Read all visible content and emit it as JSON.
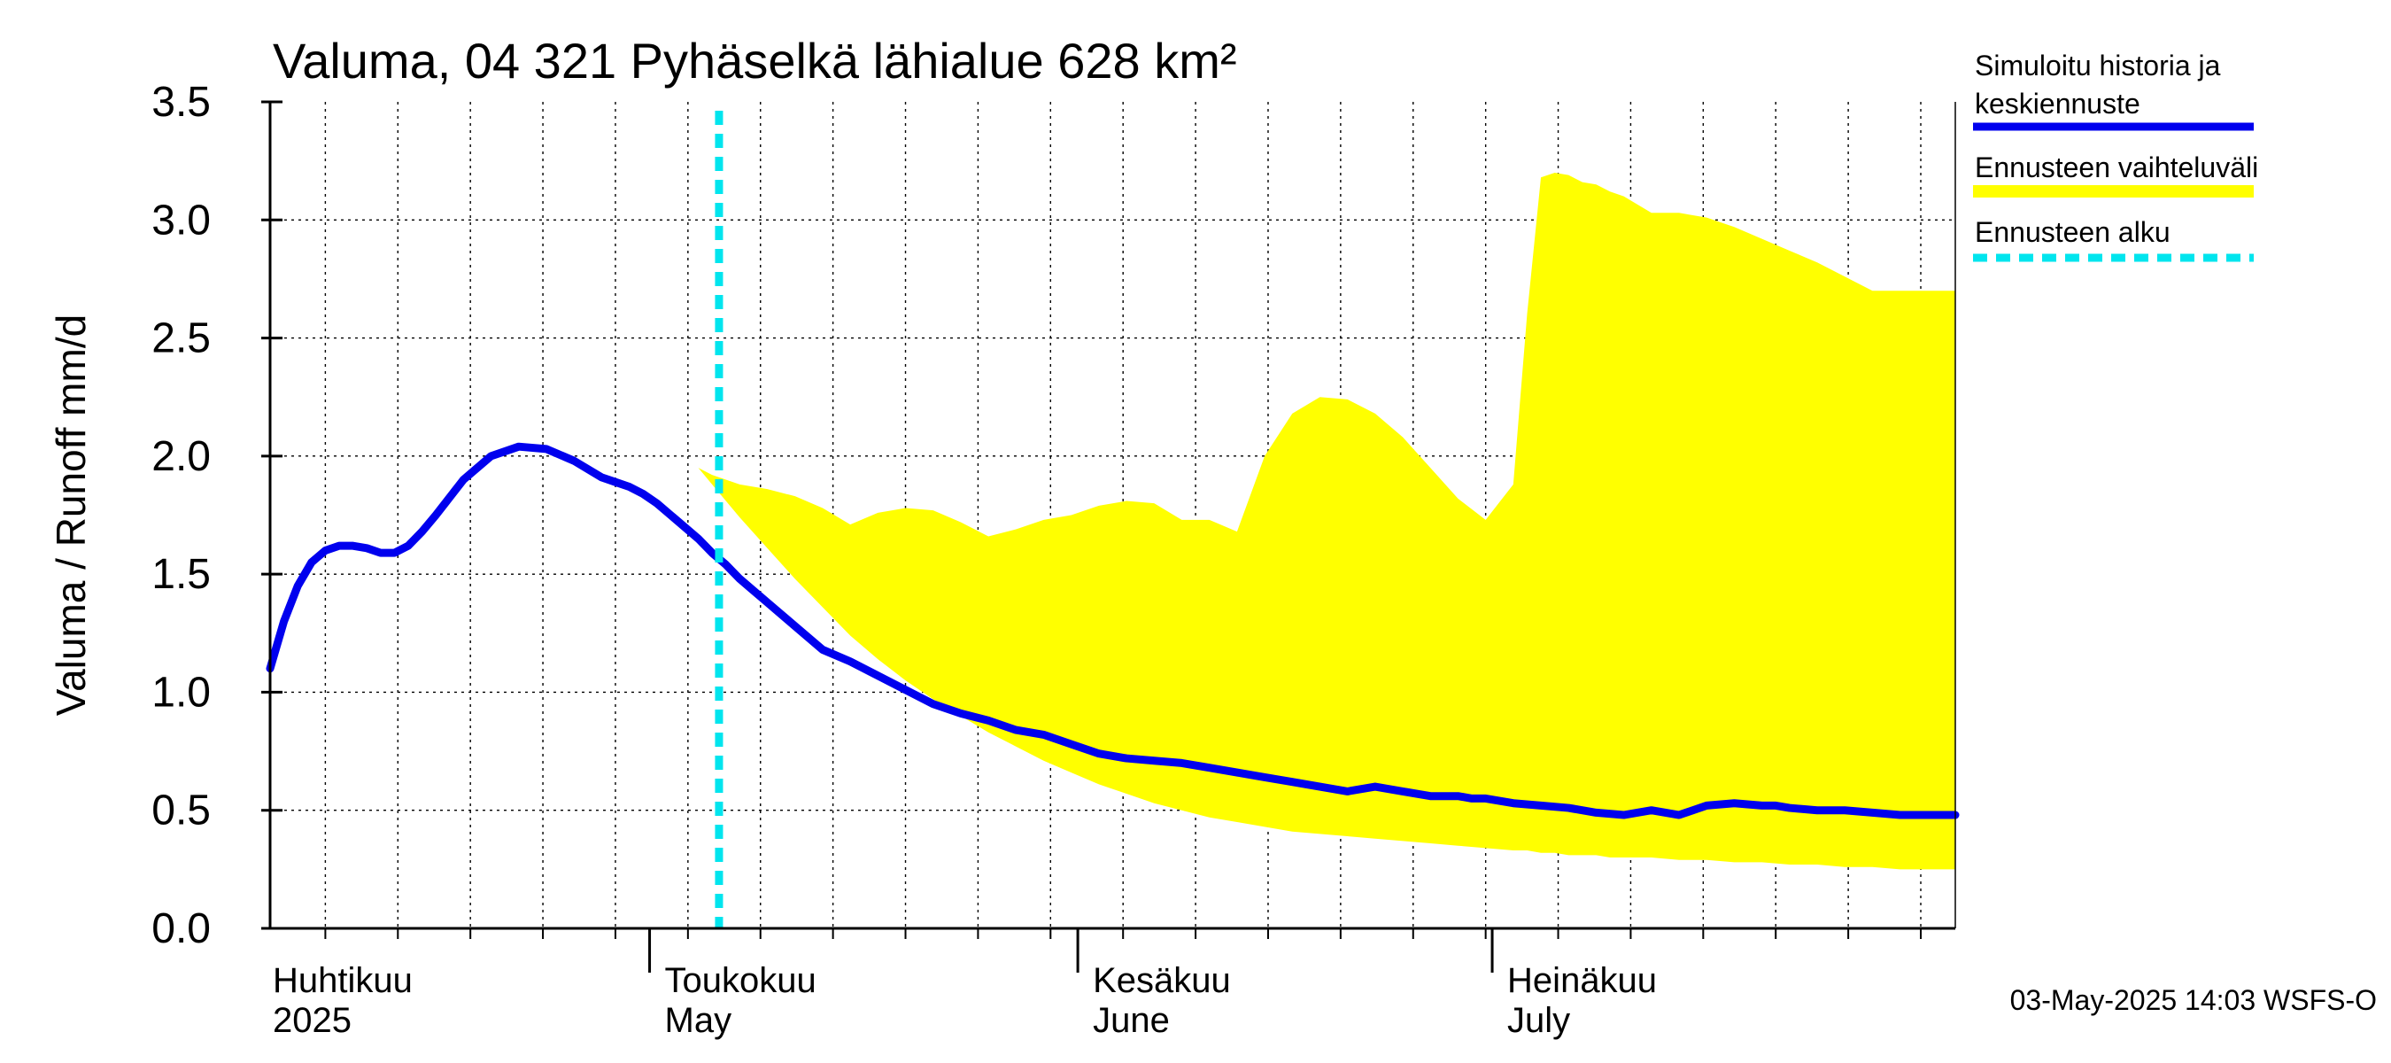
{
  "chart_data": {
    "type": "area",
    "title": "Valuma, 04 321 Pyhäselkä lähialue 628 km²",
    "ylabel": "Valuma / Runoff    mm/d",
    "ylim": [
      0,
      3.5
    ],
    "yticks": [
      "0.0",
      "0.5",
      "1.0",
      "1.5",
      "2.0",
      "2.5",
      "3.0",
      "3.5"
    ],
    "x_unit": "day of year 2025",
    "xlim": [
      90,
      212
    ],
    "forecast_start_day": 122.5,
    "month_labels": [
      {
        "fi": "Huhtikuu",
        "en": "2025",
        "day": 91
      },
      {
        "fi": "Toukokuu",
        "en": "May",
        "day": 121
      },
      {
        "fi": "Kesäkuu",
        "en": "June",
        "day": 152
      },
      {
        "fi": "Heinäkuu",
        "en": "July",
        "day": 182
      }
    ],
    "series": [
      {
        "name": "Simuloitu historia ja keskiennuste",
        "color": "#0000ee",
        "x": [
          90,
          91,
          92,
          93,
          94,
          95,
          96,
          97,
          98,
          99,
          100,
          101,
          102,
          104,
          106,
          108,
          110,
          112,
          114,
          115,
          116,
          117,
          118,
          119,
          120,
          121,
          122,
          123,
          124,
          125,
          126,
          128,
          130,
          132,
          134,
          136,
          138,
          140,
          142,
          144,
          146,
          148,
          150,
          152,
          154,
          156,
          158,
          160,
          162,
          164,
          166,
          168,
          170,
          172,
          174,
          176,
          177,
          178,
          179,
          180,
          182,
          184,
          186,
          188,
          190,
          192,
          194,
          196,
          198,
          199,
          200,
          202,
          204,
          206,
          208,
          210,
          212
        ],
        "values": [
          1.1,
          1.3,
          1.45,
          1.55,
          1.6,
          1.62,
          1.62,
          1.61,
          1.59,
          1.59,
          1.62,
          1.68,
          1.75,
          1.9,
          2.0,
          2.04,
          2.03,
          1.98,
          1.91,
          1.89,
          1.87,
          1.84,
          1.8,
          1.75,
          1.7,
          1.65,
          1.59,
          1.54,
          1.48,
          1.43,
          1.38,
          1.28,
          1.18,
          1.13,
          1.07,
          1.01,
          0.95,
          0.91,
          0.88,
          0.84,
          0.82,
          0.78,
          0.74,
          0.72,
          0.71,
          0.7,
          0.68,
          0.66,
          0.64,
          0.62,
          0.6,
          0.58,
          0.6,
          0.58,
          0.56,
          0.56,
          0.55,
          0.55,
          0.54,
          0.53,
          0.52,
          0.51,
          0.49,
          0.48,
          0.5,
          0.48,
          0.52,
          0.53,
          0.52,
          0.52,
          0.51,
          0.5,
          0.5,
          0.49,
          0.48,
          0.48,
          0.48
        ]
      }
    ],
    "range_band": {
      "name": "Ennusteen vaihteluväli",
      "color": "#ffff00",
      "x": [
        121,
        122,
        124,
        126,
        128,
        130,
        132,
        134,
        136,
        138,
        140,
        142,
        144,
        146,
        148,
        150,
        152,
        154,
        156,
        158,
        160,
        162,
        164,
        166,
        168,
        170,
        172,
        174,
        176,
        178,
        180,
        181,
        182,
        183,
        184,
        185,
        186,
        187,
        188,
        190,
        192,
        194,
        196,
        198,
        200,
        202,
        204,
        206,
        208,
        210,
        212
      ],
      "upper": [
        1.95,
        1.92,
        1.88,
        1.86,
        1.83,
        1.78,
        1.71,
        1.76,
        1.78,
        1.77,
        1.72,
        1.66,
        1.69,
        1.73,
        1.75,
        1.79,
        1.81,
        1.8,
        1.73,
        1.73,
        1.68,
        2.0,
        2.18,
        2.25,
        2.24,
        2.18,
        2.08,
        1.95,
        1.82,
        1.73,
        1.88,
        2.6,
        3.18,
        3.2,
        3.19,
        3.16,
        3.15,
        3.12,
        3.1,
        3.03,
        3.03,
        3.01,
        2.97,
        2.92,
        2.87,
        2.82,
        2.76,
        2.7,
        2.7,
        2.7,
        2.7
      ],
      "lower": [
        1.95,
        1.88,
        1.74,
        1.61,
        1.48,
        1.36,
        1.24,
        1.14,
        1.05,
        0.97,
        0.9,
        0.83,
        0.77,
        0.71,
        0.66,
        0.61,
        0.57,
        0.53,
        0.5,
        0.47,
        0.45,
        0.43,
        0.41,
        0.4,
        0.39,
        0.38,
        0.37,
        0.36,
        0.35,
        0.34,
        0.33,
        0.33,
        0.32,
        0.32,
        0.31,
        0.31,
        0.31,
        0.3,
        0.3,
        0.3,
        0.29,
        0.29,
        0.28,
        0.28,
        0.27,
        0.27,
        0.26,
        0.26,
        0.25,
        0.25,
        0.25
      ]
    },
    "legend": [
      {
        "label_lines": [
          "Simuloitu historia ja",
          "keskiennuste"
        ],
        "color": "#0000ee",
        "style": "solid"
      },
      {
        "label_lines": [
          "Ennusteen vaihteluväli"
        ],
        "color": "#ffff00",
        "style": "band"
      },
      {
        "label_lines": [
          "Ennusteen alku"
        ],
        "color": "#00e5ee",
        "style": "dashed"
      }
    ],
    "legend_placement": "right",
    "grid": true
  },
  "footer": "03-May-2025 14:03 WSFS-O"
}
